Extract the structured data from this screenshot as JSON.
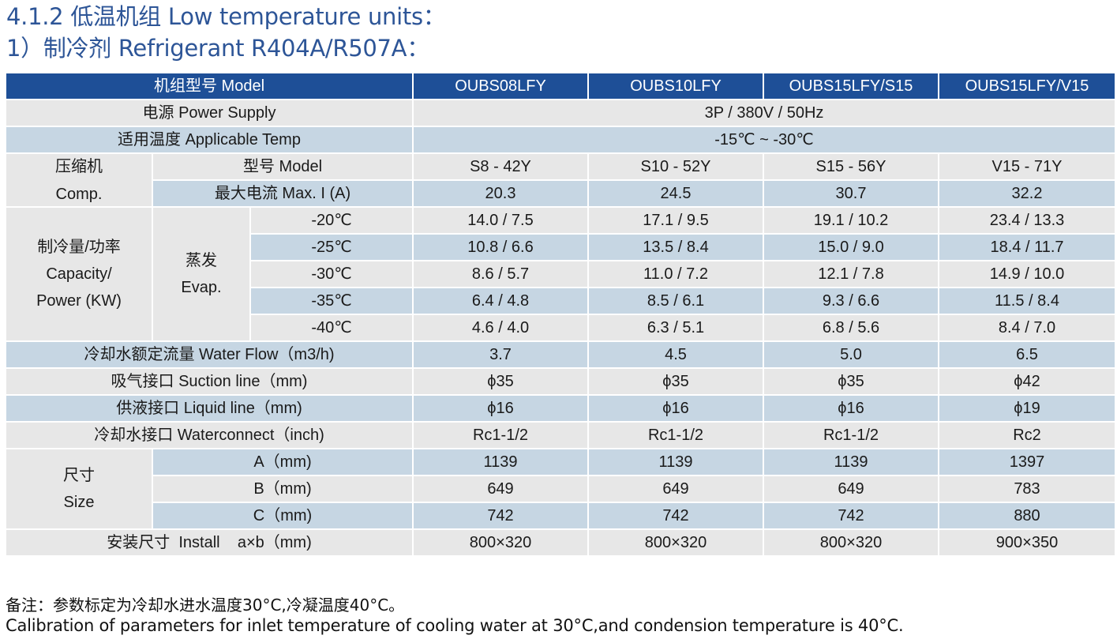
{
  "heading": {
    "line1": "4.1.2 低温机组 Low temperature units：",
    "line2": "1）制冷剂 Refrigerant R404A/R507A："
  },
  "colors": {
    "header_bg": "#1e4f97",
    "row_gray": "#e7e7e7",
    "row_blue": "#c6d6e3",
    "heading_text": "#2d5597"
  },
  "table": {
    "header": {
      "label": "机组型号 Model",
      "models": [
        "OUBS08LFY",
        "OUBS10LFY",
        "OUBS15LFY/S15",
        "OUBS15LFY/V15"
      ]
    },
    "power_supply": {
      "label": "电源 Power Supply",
      "value": "3P / 380V / 50Hz"
    },
    "applicable_temp": {
      "label": "适用温度 Applicable Temp",
      "value": "-15℃ ~ -30℃"
    },
    "compressor": {
      "group_cn": "压缩机",
      "group_en": "Comp.",
      "model_label": "型号 Model",
      "models": [
        "S8 - 42Y",
        "S10 - 52Y",
        "S15 - 56Y",
        "V15 - 71Y"
      ],
      "current_label": "最大电流 Max. I (A)",
      "currents": [
        "20.3",
        "24.5",
        "30.7",
        "32.2"
      ]
    },
    "capacity": {
      "group_cn": "制冷量/功率",
      "group_en1": "Capacity/",
      "group_en2": "Power (KW)",
      "evap_cn": "蒸发",
      "evap_en": "Evap.",
      "rows": [
        {
          "temp": "-20℃",
          "values": [
            "14.0 / 7.5",
            "17.1 / 9.5",
            "19.1 / 10.2",
            "23.4 / 13.3"
          ]
        },
        {
          "temp": "-25℃",
          "values": [
            "10.8 / 6.6",
            "13.5 / 8.4",
            "15.0 / 9.0",
            "18.4 / 11.7"
          ]
        },
        {
          "temp": "-30℃",
          "values": [
            "8.6 / 5.7",
            "11.0 / 7.2",
            "12.1 / 7.8",
            "14.9 / 10.0"
          ]
        },
        {
          "temp": "-35℃",
          "values": [
            "6.4 / 4.8",
            "8.5 / 6.1",
            "9.3 / 6.6",
            "11.5 / 8.4"
          ]
        },
        {
          "temp": "-40℃",
          "values": [
            "4.6 / 4.0",
            "6.3 / 5.1",
            "6.8 / 5.6",
            "8.4 / 7.0"
          ]
        }
      ]
    },
    "water_flow": {
      "label": "冷却水额定流量 Water Flow（m3/h)",
      "values": [
        "3.7",
        "4.5",
        "5.0",
        "6.5"
      ]
    },
    "suction_line": {
      "label": "吸气接口 Suction line（mm)",
      "values": [
        "ϕ35",
        "ϕ35",
        "ϕ35",
        "ϕ42"
      ]
    },
    "liquid_line": {
      "label": "供液接口 Liquid line（mm)",
      "values": [
        "ϕ16",
        "ϕ16",
        "ϕ16",
        "ϕ19"
      ]
    },
    "waterconnect": {
      "label": "冷却水接口 Waterconnect（inch)",
      "values": [
        "Rc1-1/2",
        "Rc1-1/2",
        "Rc1-1/2",
        "Rc2"
      ]
    },
    "size": {
      "group_cn": "尺寸",
      "group_en": "Size",
      "rows": [
        {
          "label": "A（mm)",
          "values": [
            "1139",
            "1139",
            "1139",
            "1397"
          ]
        },
        {
          "label": "B（mm)",
          "values": [
            "649",
            "649",
            "649",
            "783"
          ]
        },
        {
          "label": "C（mm)",
          "values": [
            "742",
            "742",
            "742",
            "880"
          ]
        }
      ]
    },
    "install": {
      "label": "安装尺寸  Install    a×b（mm)",
      "values": [
        "800×320",
        "800×320",
        "800×320",
        "900×350"
      ]
    }
  },
  "notes": {
    "line1": "备注：参数标定为冷却水进水温度30°C,冷凝温度40°C。",
    "line2": "Calibration of parameters for inlet temperature of cooling water at 30°C,and condension temperature is 40°C."
  }
}
